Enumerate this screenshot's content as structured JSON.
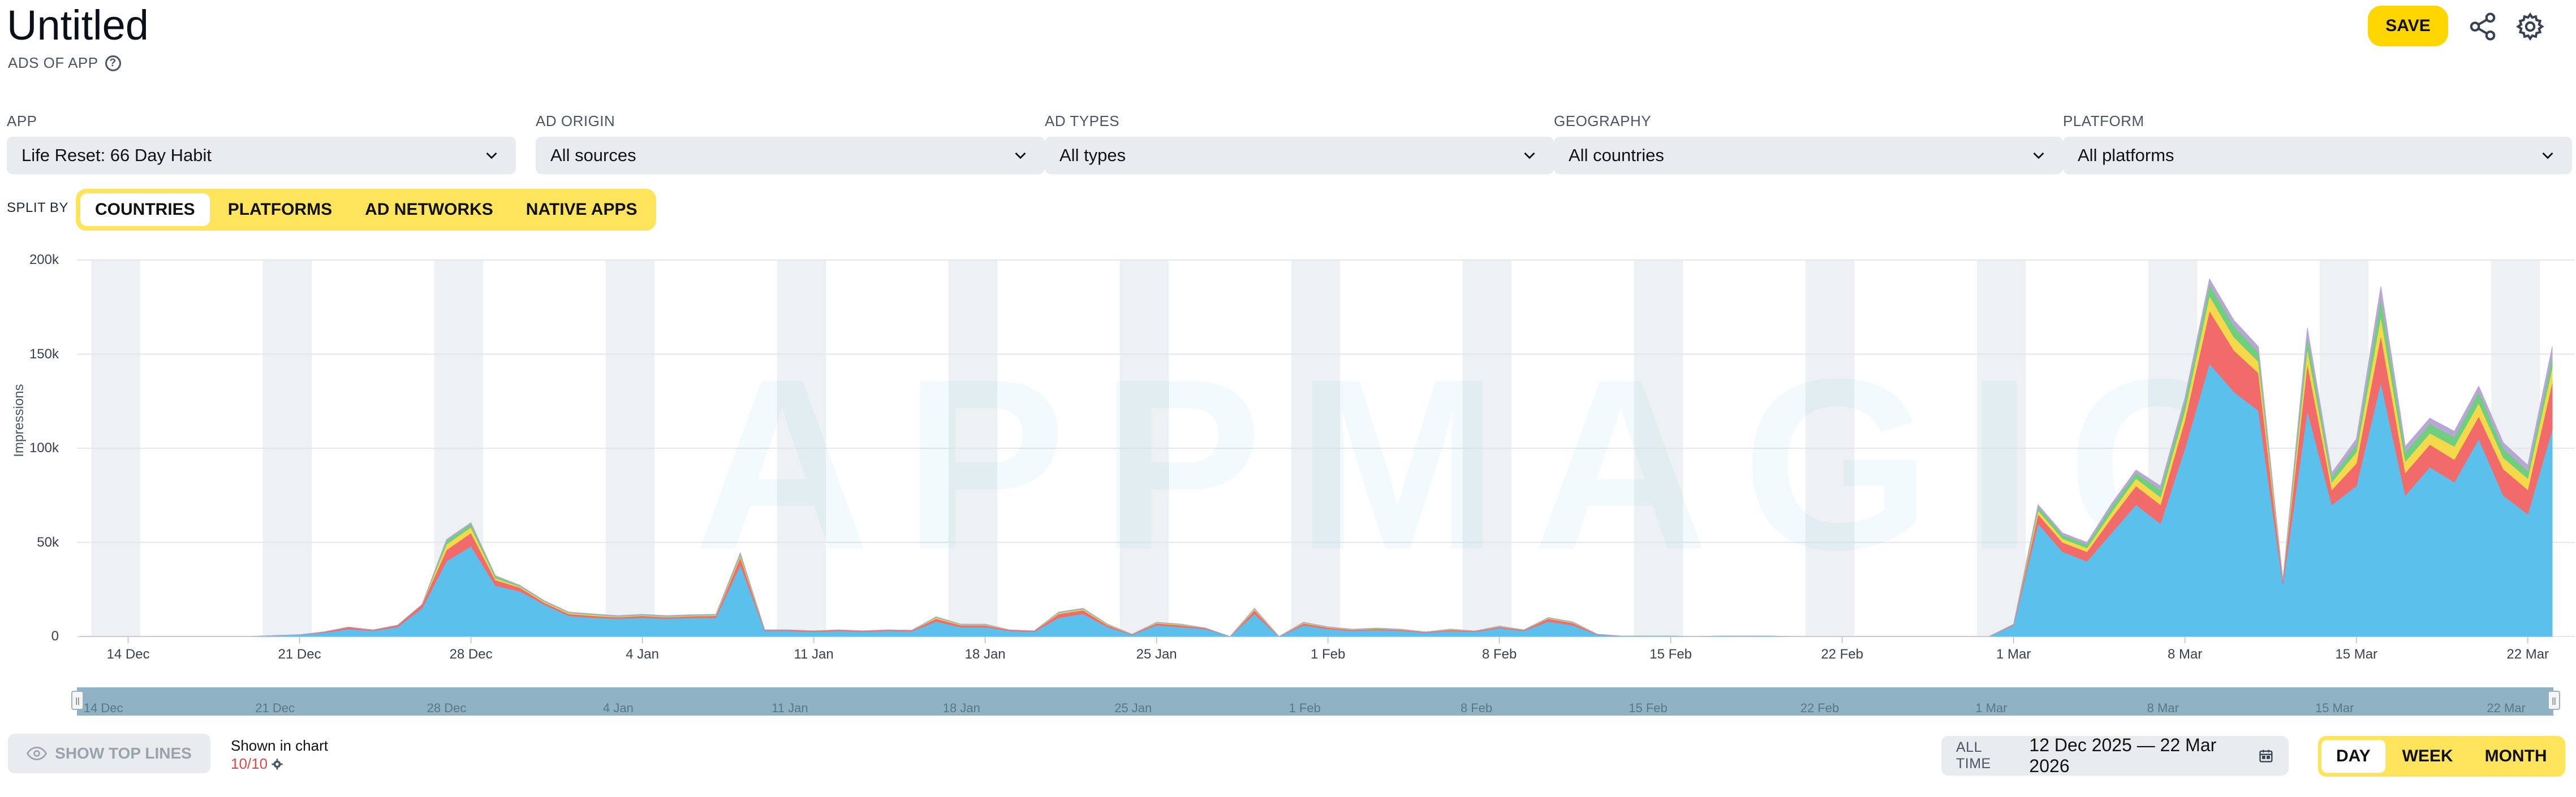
{
  "header": {
    "title": "Untitled",
    "subtitle": "ADS OF APP",
    "save_label": "SAVE"
  },
  "filters": [
    {
      "label": "APP",
      "value": "Life Reset: 66 Day Habit"
    },
    {
      "label": "AD ORIGIN",
      "value": "All sources"
    },
    {
      "label": "AD TYPES",
      "value": "All types"
    },
    {
      "label": "GEOGRAPHY",
      "value": "All countries"
    },
    {
      "label": "PLATFORM",
      "value": "All platforms"
    }
  ],
  "split_by": {
    "label": "SPLIT BY",
    "options": [
      "COUNTRIES",
      "PLATFORMS",
      "AD NETWORKS",
      "NATIVE APPS"
    ],
    "selected": "COUNTRIES"
  },
  "watermark": "APPMAGIC",
  "chart_data": {
    "type": "area",
    "ylabel": "Impressions",
    "ylim": [
      0,
      200000
    ],
    "yticks": [
      "0",
      "50k",
      "100k",
      "150k",
      "200k"
    ],
    "xticks": [
      "14 Dec",
      "21 Dec",
      "28 Dec",
      "4 Jan",
      "11 Jan",
      "18 Jan",
      "25 Jan",
      "1 Feb",
      "8 Feb",
      "15 Feb",
      "22 Feb",
      "1 Mar",
      "8 Mar",
      "15 Mar",
      "22 Mar"
    ],
    "x_start": "12 Dec 2025",
    "x_end": "22 Mar 2026",
    "stacked": true,
    "legend": "none",
    "series_colors": [
      "#5bc0eb",
      "#f26b6b",
      "#f6d94a",
      "#6fcf7f",
      "#b9a6d6"
    ],
    "series": [
      {
        "values": [
          0,
          0,
          0,
          0,
          0,
          0,
          0,
          0,
          500,
          1000,
          2000,
          4000,
          3000,
          5000,
          15000,
          40000,
          48000,
          27000,
          24000,
          17000,
          11000,
          10000,
          9500,
          10000,
          9500,
          10000,
          10000,
          38000,
          3000,
          3000,
          2500,
          3000,
          2500,
          3000,
          2800,
          8000,
          5000,
          5000,
          3000,
          2500,
          10000,
          12000,
          5000,
          1000,
          6000,
          5000,
          4000,
          0,
          12000,
          0,
          6000,
          4000,
          3000,
          3500,
          3000,
          2000,
          3000,
          2500,
          4500,
          3000,
          8000,
          6000,
          1000,
          200,
          200,
          200,
          0,
          200,
          300,
          200,
          0,
          0,
          0,
          0,
          0,
          0,
          0,
          0,
          0,
          6000,
          60000,
          45000,
          40000,
          55000,
          70000,
          60000,
          100000,
          145000,
          130000,
          120000,
          28000,
          120000,
          70000,
          80000,
          135000,
          75000,
          90000,
          82000,
          105000,
          75000,
          65000,
          110000
        ]
      },
      {
        "values": [
          0,
          0,
          0,
          0,
          0,
          0,
          0,
          0,
          0,
          0,
          500,
          1000,
          500,
          1000,
          2000,
          6000,
          7000,
          3000,
          2000,
          1000,
          1000,
          1000,
          800,
          1000,
          800,
          800,
          1000,
          4000,
          500,
          500,
          500,
          500,
          500,
          500,
          500,
          1500,
          1000,
          1000,
          500,
          500,
          2000,
          2000,
          1000,
          200,
          1000,
          1000,
          500,
          0,
          2000,
          0,
          1000,
          800,
          500,
          600,
          500,
          400,
          600,
          400,
          700,
          500,
          1500,
          1200,
          200,
          0,
          0,
          0,
          0,
          0,
          0,
          0,
          0,
          0,
          0,
          0,
          0,
          0,
          0,
          0,
          0,
          500,
          5000,
          5000,
          5000,
          8000,
          10000,
          10000,
          15000,
          28000,
          22000,
          20000,
          2000,
          25000,
          8000,
          12000,
          25000,
          12000,
          12000,
          12000,
          12000,
          14000,
          13000,
          25000
        ]
      },
      {
        "values": [
          0,
          0,
          0,
          0,
          0,
          0,
          0,
          0,
          0,
          0,
          0,
          0,
          0,
          0,
          0,
          3000,
          3000,
          1000,
          500,
          500,
          500,
          500,
          300,
          300,
          300,
          300,
          300,
          1000,
          0,
          0,
          0,
          0,
          0,
          0,
          0,
          500,
          300,
          300,
          0,
          0,
          500,
          500,
          300,
          0,
          300,
          300,
          0,
          0,
          500,
          0,
          300,
          200,
          200,
          200,
          200,
          0,
          200,
          0,
          200,
          0,
          300,
          300,
          0,
          0,
          0,
          0,
          0,
          0,
          0,
          0,
          0,
          0,
          0,
          0,
          0,
          0,
          0,
          0,
          0,
          0,
          2000,
          2000,
          2000,
          3000,
          4000,
          4000,
          5000,
          8000,
          7000,
          6000,
          0,
          8000,
          4000,
          6000,
          10000,
          6000,
          6000,
          7000,
          7000,
          6000,
          6000,
          8000
        ]
      },
      {
        "values": [
          0,
          0,
          0,
          0,
          0,
          0,
          0,
          0,
          0,
          0,
          0,
          0,
          0,
          0,
          0,
          2000,
          2000,
          1000,
          500,
          300,
          300,
          300,
          300,
          300,
          300,
          300,
          300,
          1000,
          0,
          0,
          0,
          0,
          0,
          0,
          0,
          300,
          200,
          200,
          0,
          0,
          300,
          300,
          200,
          0,
          200,
          200,
          0,
          0,
          300,
          0,
          200,
          100,
          100,
          100,
          100,
          0,
          100,
          0,
          100,
          0,
          200,
          200,
          0,
          0,
          0,
          0,
          0,
          0,
          0,
          0,
          0,
          0,
          0,
          0,
          0,
          0,
          0,
          0,
          0,
          0,
          2000,
          2000,
          2000,
          3000,
          3000,
          4000,
          5000,
          6000,
          6000,
          5000,
          0,
          7000,
          3000,
          4000,
          10000,
          5000,
          5000,
          5000,
          6000,
          5000,
          4000,
          6000
        ]
      },
      {
        "values": [
          0,
          0,
          0,
          0,
          0,
          0,
          0,
          0,
          0,
          0,
          0,
          0,
          0,
          0,
          0,
          500,
          500,
          300,
          200,
          200,
          200,
          200,
          200,
          200,
          200,
          200,
          200,
          500,
          0,
          0,
          0,
          0,
          0,
          0,
          0,
          200,
          100,
          100,
          0,
          0,
          200,
          200,
          100,
          0,
          100,
          100,
          0,
          0,
          200,
          0,
          100,
          100,
          100,
          100,
          100,
          0,
          100,
          0,
          100,
          0,
          100,
          100,
          0,
          0,
          0,
          0,
          0,
          0,
          0,
          0,
          0,
          0,
          0,
          0,
          0,
          0,
          0,
          0,
          0,
          0,
          1000,
          1000,
          1000,
          1500,
          1500,
          2000,
          2000,
          3000,
          3000,
          3000,
          0,
          4000,
          2000,
          3000,
          6000,
          3000,
          3000,
          3000,
          3000,
          3000,
          3000,
          5000
        ]
      }
    ]
  },
  "navigator": {
    "ticks": [
      "14 Dec",
      "21 Dec",
      "28 Dec",
      "4 Jan",
      "11 Jan",
      "18 Jan",
      "25 Jan",
      "1 Feb",
      "8 Feb",
      "15 Feb",
      "22 Feb",
      "1 Mar",
      "8 Mar",
      "15 Mar",
      "22 Mar"
    ]
  },
  "footer": {
    "show_top_lines": "SHOW TOP LINES",
    "shown_in_chart": "Shown in chart",
    "shown_count": "10/10",
    "all_time": "ALL TIME",
    "date_range": "12 Dec 2025 — 22 Mar 2026",
    "periods": [
      "DAY",
      "WEEK",
      "MONTH"
    ],
    "selected_period": "DAY"
  }
}
